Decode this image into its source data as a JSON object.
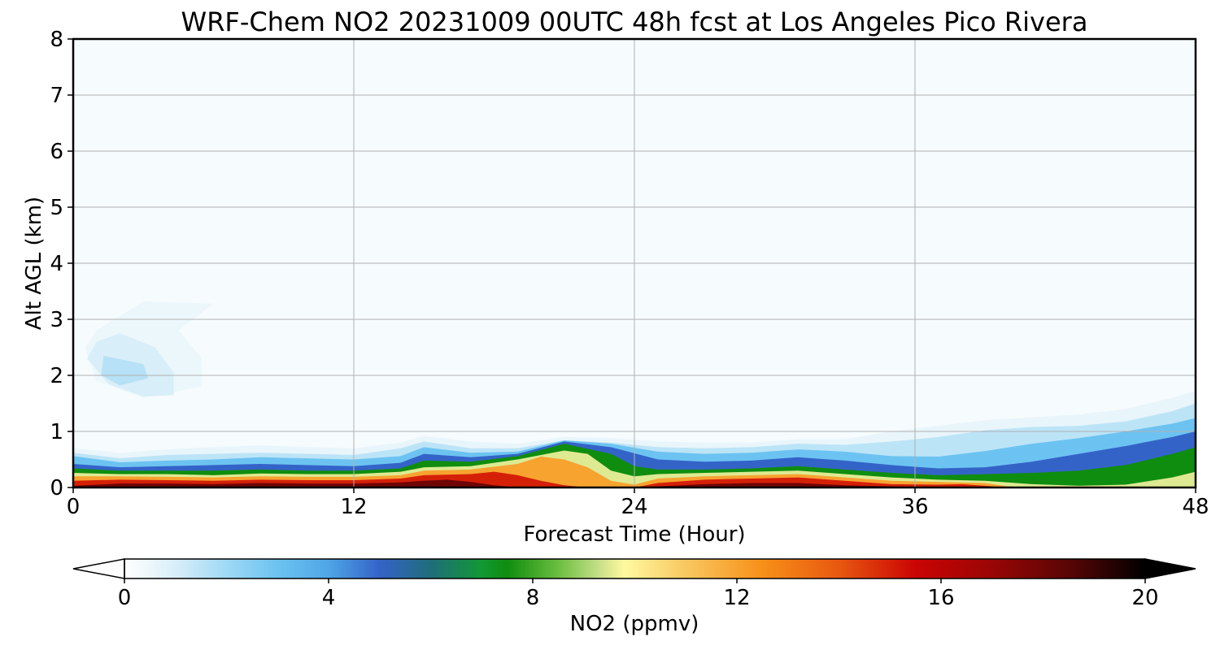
{
  "chart_data": {
    "type": "heatmap",
    "title": "WRF-Chem NO2  20231009 00UTC 48h fcst at Los Angeles Pico Rivera",
    "xlabel": "Forecast Time (Hour)",
    "ylabel": "Alt AGL (km)",
    "xlim": [
      0,
      48
    ],
    "ylim": [
      0,
      8
    ],
    "xticks": [
      "0",
      "12",
      "24",
      "36",
      "48"
    ],
    "yticks": [
      "0",
      "1",
      "2",
      "3",
      "4",
      "5",
      "6",
      "7",
      "8"
    ],
    "grid": true,
    "colorbar": {
      "label": "NO2  (ppmv)",
      "range": [
        0,
        20
      ],
      "ticks": [
        "0",
        "4",
        "8",
        "12",
        "16",
        "20"
      ],
      "extend": "both",
      "stops": [
        {
          "v": 0,
          "color": "#ffffff"
        },
        {
          "v": 1,
          "color": "#d8eef8"
        },
        {
          "v": 2,
          "color": "#9fd9f5"
        },
        {
          "v": 3,
          "color": "#6cc3f1"
        },
        {
          "v": 4,
          "color": "#4ea6e6"
        },
        {
          "v": 5,
          "color": "#3463c8"
        },
        {
          "v": 6,
          "color": "#206d7a"
        },
        {
          "v": 7,
          "color": "#129834"
        },
        {
          "v": 7.5,
          "color": "#0f8d0f"
        },
        {
          "v": 8.5,
          "color": "#6bbe40"
        },
        {
          "v": 9.3,
          "color": "#c6e089"
        },
        {
          "v": 9.8,
          "color": "#fff9a0"
        },
        {
          "v": 11,
          "color": "#f8c860"
        },
        {
          "v": 12.5,
          "color": "#f79018"
        },
        {
          "v": 14,
          "color": "#e85810"
        },
        {
          "v": 15.5,
          "color": "#cb0404"
        },
        {
          "v": 17,
          "color": "#9a0505"
        },
        {
          "v": 18.5,
          "color": "#5a0505"
        },
        {
          "v": 20,
          "color": "#000000"
        }
      ]
    },
    "layers": [
      {
        "value": 0.6,
        "top": [
          [
            0,
            0.7
          ],
          [
            2,
            0.62
          ],
          [
            4,
            0.68
          ],
          [
            6,
            0.72
          ],
          [
            8,
            0.75
          ],
          [
            10,
            0.72
          ],
          [
            12,
            0.7
          ],
          [
            14,
            0.8
          ],
          [
            15,
            0.92
          ],
          [
            17,
            0.82
          ],
          [
            19,
            0.78
          ],
          [
            21,
            0.9
          ],
          [
            23,
            0.88
          ],
          [
            25,
            0.82
          ],
          [
            27,
            0.8
          ],
          [
            29,
            0.8
          ],
          [
            31,
            0.86
          ],
          [
            33,
            0.86
          ],
          [
            35,
            1.0
          ],
          [
            37,
            1.1
          ],
          [
            39,
            1.2
          ],
          [
            41,
            1.25
          ],
          [
            43,
            1.3
          ],
          [
            45,
            1.4
          ],
          [
            47,
            1.6
          ],
          [
            48,
            1.72
          ]
        ]
      },
      {
        "value": 1.5,
        "top": [
          [
            0,
            0.62
          ],
          [
            2,
            0.52
          ],
          [
            4,
            0.58
          ],
          [
            6,
            0.6
          ],
          [
            8,
            0.62
          ],
          [
            10,
            0.6
          ],
          [
            12,
            0.58
          ],
          [
            14,
            0.7
          ],
          [
            15,
            0.82
          ],
          [
            17,
            0.7
          ],
          [
            19,
            0.7
          ],
          [
            21,
            0.84
          ],
          [
            23,
            0.8
          ],
          [
            25,
            0.72
          ],
          [
            27,
            0.7
          ],
          [
            29,
            0.72
          ],
          [
            31,
            0.78
          ],
          [
            33,
            0.76
          ],
          [
            35,
            0.82
          ],
          [
            37,
            0.9
          ],
          [
            39,
            1.02
          ],
          [
            41,
            1.08
          ],
          [
            43,
            1.1
          ],
          [
            45,
            1.18
          ],
          [
            47,
            1.36
          ],
          [
            48,
            1.5
          ]
        ]
      },
      {
        "value": 3.0,
        "top": [
          [
            0,
            0.56
          ],
          [
            2,
            0.45
          ],
          [
            4,
            0.48
          ],
          [
            6,
            0.5
          ],
          [
            8,
            0.54
          ],
          [
            10,
            0.52
          ],
          [
            12,
            0.5
          ],
          [
            14,
            0.56
          ],
          [
            15,
            0.72
          ],
          [
            17,
            0.62
          ],
          [
            19,
            0.64
          ],
          [
            21,
            0.84
          ],
          [
            23,
            0.78
          ],
          [
            25,
            0.64
          ],
          [
            27,
            0.6
          ],
          [
            29,
            0.62
          ],
          [
            31,
            0.68
          ],
          [
            33,
            0.64
          ],
          [
            35,
            0.56
          ],
          [
            37,
            0.55
          ],
          [
            39,
            0.65
          ],
          [
            41,
            0.78
          ],
          [
            43,
            0.88
          ],
          [
            45,
            1.0
          ],
          [
            47,
            1.14
          ],
          [
            48,
            1.24
          ]
        ]
      },
      {
        "value": 5.0,
        "top": [
          [
            0,
            0.42
          ],
          [
            2,
            0.36
          ],
          [
            4,
            0.38
          ],
          [
            6,
            0.4
          ],
          [
            8,
            0.42
          ],
          [
            10,
            0.4
          ],
          [
            12,
            0.38
          ],
          [
            14,
            0.44
          ],
          [
            15,
            0.6
          ],
          [
            17,
            0.54
          ],
          [
            19,
            0.6
          ],
          [
            21,
            0.82
          ],
          [
            23,
            0.72
          ],
          [
            25,
            0.5
          ],
          [
            27,
            0.46
          ],
          [
            29,
            0.48
          ],
          [
            31,
            0.54
          ],
          [
            33,
            0.48
          ],
          [
            35,
            0.4
          ],
          [
            37,
            0.34
          ],
          [
            39,
            0.36
          ],
          [
            41,
            0.46
          ],
          [
            43,
            0.6
          ],
          [
            45,
            0.74
          ],
          [
            47,
            0.9
          ],
          [
            48,
            1.0
          ]
        ]
      },
      {
        "value": 7.5,
        "top": [
          [
            0,
            0.34
          ],
          [
            2,
            0.3
          ],
          [
            4,
            0.3
          ],
          [
            6,
            0.3
          ],
          [
            8,
            0.32
          ],
          [
            10,
            0.3
          ],
          [
            12,
            0.3
          ],
          [
            14,
            0.34
          ],
          [
            15,
            0.48
          ],
          [
            17,
            0.46
          ],
          [
            19,
            0.56
          ],
          [
            21,
            0.78
          ],
          [
            23,
            0.6
          ],
          [
            24,
            0.38
          ],
          [
            25,
            0.32
          ],
          [
            27,
            0.32
          ],
          [
            29,
            0.34
          ],
          [
            31,
            0.38
          ],
          [
            33,
            0.32
          ],
          [
            35,
            0.26
          ],
          [
            37,
            0.22
          ],
          [
            39,
            0.24
          ],
          [
            41,
            0.26
          ],
          [
            43,
            0.3
          ],
          [
            45,
            0.4
          ],
          [
            47,
            0.6
          ],
          [
            48,
            0.72
          ]
        ]
      },
      {
        "value": 9.5,
        "top": [
          [
            0,
            0.26
          ],
          [
            2,
            0.24
          ],
          [
            4,
            0.24
          ],
          [
            6,
            0.22
          ],
          [
            8,
            0.25
          ],
          [
            10,
            0.24
          ],
          [
            12,
            0.24
          ],
          [
            14,
            0.28
          ],
          [
            15,
            0.36
          ],
          [
            17,
            0.38
          ],
          [
            19,
            0.5
          ],
          [
            21,
            0.66
          ],
          [
            22,
            0.6
          ],
          [
            23,
            0.3
          ],
          [
            24,
            0.2
          ],
          [
            25,
            0.24
          ],
          [
            27,
            0.26
          ],
          [
            29,
            0.28
          ],
          [
            31,
            0.3
          ],
          [
            33,
            0.24
          ],
          [
            35,
            0.18
          ],
          [
            37,
            0.14
          ],
          [
            39,
            0.12
          ],
          [
            41,
            0.06
          ],
          [
            43,
            0.03
          ],
          [
            45,
            0.05
          ],
          [
            47,
            0.18
          ],
          [
            48,
            0.28
          ]
        ]
      },
      {
        "value": 12.0,
        "top": [
          [
            0,
            0.2
          ],
          [
            2,
            0.2
          ],
          [
            4,
            0.19
          ],
          [
            6,
            0.18
          ],
          [
            8,
            0.2
          ],
          [
            10,
            0.19
          ],
          [
            12,
            0.19
          ],
          [
            14,
            0.22
          ],
          [
            15,
            0.3
          ],
          [
            17,
            0.32
          ],
          [
            19,
            0.42
          ],
          [
            20,
            0.55
          ],
          [
            21,
            0.5
          ],
          [
            22,
            0.36
          ],
          [
            23,
            0.12
          ],
          [
            24,
            0.05
          ],
          [
            25,
            0.16
          ],
          [
            27,
            0.2
          ],
          [
            29,
            0.22
          ],
          [
            31,
            0.24
          ],
          [
            33,
            0.18
          ],
          [
            35,
            0.12
          ],
          [
            37,
            0.1
          ],
          [
            39,
            0.08
          ],
          [
            40,
            0.02
          ],
          [
            41,
            0
          ],
          [
            48,
            0
          ]
        ]
      },
      {
        "value": 15.0,
        "top": [
          [
            0,
            0.12
          ],
          [
            2,
            0.14
          ],
          [
            4,
            0.13
          ],
          [
            6,
            0.12
          ],
          [
            8,
            0.14
          ],
          [
            10,
            0.13
          ],
          [
            12,
            0.13
          ],
          [
            14,
            0.16
          ],
          [
            15,
            0.22
          ],
          [
            17,
            0.24
          ],
          [
            18,
            0.28
          ],
          [
            19,
            0.22
          ],
          [
            20,
            0.12
          ],
          [
            21,
            0.04
          ],
          [
            22,
            0
          ],
          [
            24,
            0
          ],
          [
            25,
            0.08
          ],
          [
            27,
            0.14
          ],
          [
            29,
            0.16
          ],
          [
            31,
            0.18
          ],
          [
            33,
            0.12
          ],
          [
            35,
            0.06
          ],
          [
            37,
            0.05
          ],
          [
            38,
            0.06
          ],
          [
            39,
            0.03
          ],
          [
            40,
            0
          ],
          [
            48,
            0
          ]
        ]
      },
      {
        "value": 18.0,
        "top": [
          [
            0,
            0.03
          ],
          [
            2,
            0.07
          ],
          [
            4,
            0.07
          ],
          [
            6,
            0.06
          ],
          [
            8,
            0.08
          ],
          [
            10,
            0.07
          ],
          [
            12,
            0.07
          ],
          [
            14,
            0.09
          ],
          [
            15,
            0.12
          ],
          [
            16,
            0.14
          ],
          [
            17,
            0.1
          ],
          [
            18,
            0.04
          ],
          [
            19,
            0
          ],
          [
            24,
            0
          ],
          [
            25,
            0.02
          ],
          [
            27,
            0.06
          ],
          [
            29,
            0.08
          ],
          [
            31,
            0.08
          ],
          [
            33,
            0.04
          ],
          [
            35,
            0.02
          ],
          [
            37,
            0
          ],
          [
            48,
            0
          ]
        ]
      }
    ],
    "blobs": [
      {
        "value": 0.5,
        "polygon": [
          [
            1,
            2.8
          ],
          [
            3,
            3.32
          ],
          [
            6,
            3.28
          ],
          [
            4.5,
            2.8
          ],
          [
            5.5,
            2.3
          ],
          [
            5.5,
            1.8
          ],
          [
            3,
            1.6
          ],
          [
            1,
            1.9
          ],
          [
            0.5,
            2.5
          ]
        ]
      },
      {
        "value": 1.0,
        "polygon": [
          [
            1,
            2.6
          ],
          [
            2,
            2.75
          ],
          [
            3.5,
            2.5
          ],
          [
            4.3,
            2.05
          ],
          [
            4.3,
            1.65
          ],
          [
            3,
            1.62
          ],
          [
            1.5,
            1.85
          ],
          [
            0.6,
            2.3
          ]
        ]
      },
      {
        "value": 1.6,
        "polygon": [
          [
            1.3,
            2.35
          ],
          [
            3,
            2.2
          ],
          [
            3.2,
            1.95
          ],
          [
            2,
            1.82
          ],
          [
            1.2,
            2.0
          ]
        ]
      }
    ]
  }
}
